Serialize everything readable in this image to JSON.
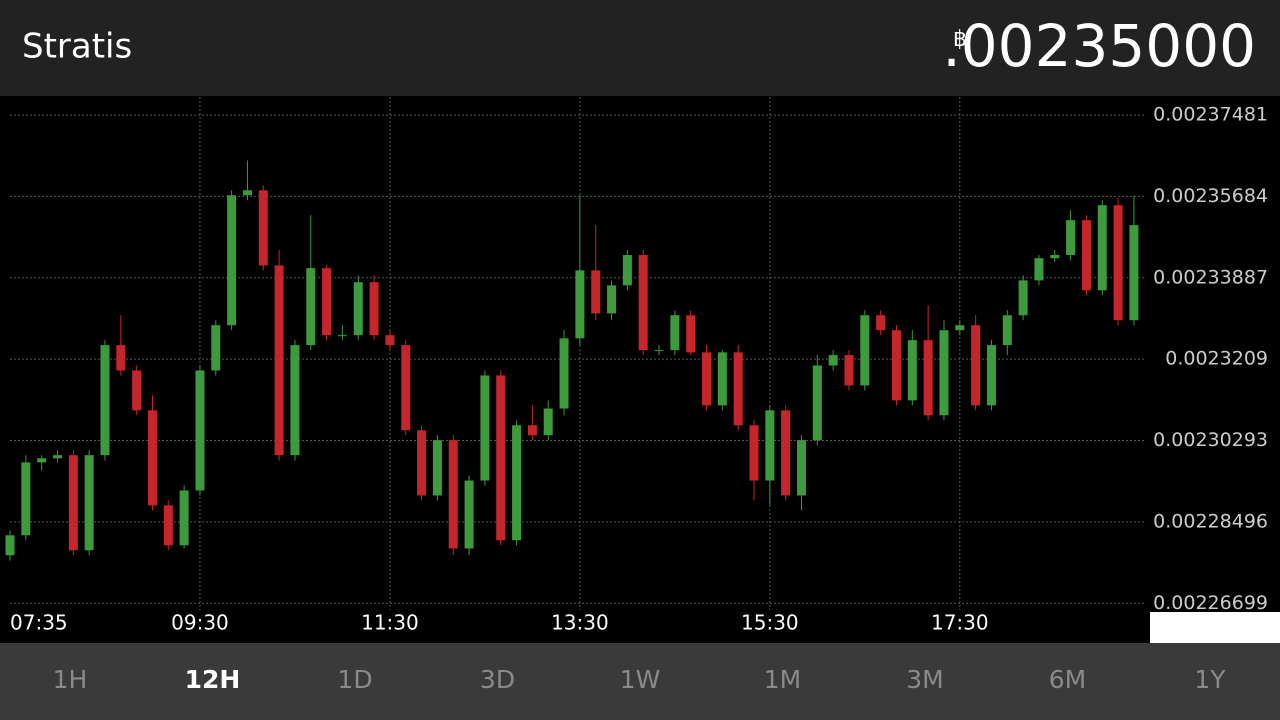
{
  "header": {
    "title": "Stratis",
    "currency": "฿",
    "price": ".00235000"
  },
  "chart_data": {
    "type": "candlestick",
    "categories": [
      "07:35",
      null,
      null,
      null,
      null,
      null,
      null,
      null,
      null,
      null,
      null,
      null,
      "09:30",
      null,
      null,
      null,
      null,
      null,
      null,
      null,
      null,
      null,
      null,
      null,
      "11:30",
      null,
      null,
      null,
      null,
      null,
      null,
      null,
      null,
      null,
      null,
      null,
      "13:30",
      null,
      null,
      null,
      null,
      null,
      null,
      null,
      null,
      null,
      null,
      null,
      "15:30",
      null,
      null,
      null,
      null,
      null,
      null,
      null,
      null,
      null,
      null,
      null,
      "17:30",
      null,
      null,
      null,
      null,
      null,
      null,
      null,
      null,
      null,
      null,
      null
    ],
    "open": [
      0.0022776,
      0.002282,
      0.0022981,
      0.002299,
      0.0022997,
      0.0022787,
      0.0022997,
      0.002324,
      0.0023184,
      0.0023096,
      0.0022886,
      0.0022798,
      0.0022919,
      0.0023184,
      0.0023284,
      0.0023571,
      0.0023582,
      0.0023416,
      0.0022997,
      0.002324,
      0.002341,
      0.0023262,
      0.0023262,
      0.0023379,
      0.0023262,
      0.002324,
      0.0023052,
      0.0022908,
      0.002303,
      0.0022791,
      0.0022941,
      0.0023173,
      0.0022809,
      0.0023063,
      0.0023041,
      0.00231,
      0.0023255,
      0.0023405,
      0.002331,
      0.0023372,
      0.0023439,
      0.0023229,
      0.0023229,
      0.0023306,
      0.0023224,
      0.0023107,
      0.0023224,
      0.0023063,
      0.0022941,
      0.0023096,
      0.0022908,
      0.002303,
      0.0023195,
      0.0023218,
      0.0023151,
      0.0023306,
      0.0023273,
      0.0023118,
      0.0023251,
      0.0023085,
      0.0023273,
      0.0023284,
      0.0023107,
      0.002324,
      0.0023306,
      0.0023383,
      0.0023432,
      0.0023439,
      0.0023516,
      0.0023361,
      0.0023549,
      0.0023295
    ],
    "high": [
      0.0022831,
      0.0022997,
      0.0022997,
      0.0023008,
      0.0023008,
      0.0023008,
      0.0023251,
      0.0023306,
      0.0023195,
      0.0023129,
      0.0022897,
      0.002293,
      0.0023195,
      0.0023295,
      0.0023582,
      0.0023648,
      0.0023593,
      0.002345,
      0.0023251,
      0.0023527,
      0.0023416,
      0.0023284,
      0.0023394,
      0.0023394,
      0.0023273,
      0.0023251,
      0.0023063,
      0.0023041,
      0.0023041,
      0.0022952,
      0.0023184,
      0.0023184,
      0.0023074,
      0.0023107,
      0.0023118,
      0.0023273,
      0.0023571,
      0.0023505,
      0.0023383,
      0.002345,
      0.002345,
      0.002324,
      0.0023317,
      0.0023317,
      0.002324,
      0.0023229,
      0.002324,
      0.0023074,
      0.0023107,
      0.0023107,
      0.0023041,
      0.0023218,
      0.0023229,
      0.0023229,
      0.0023317,
      0.0023317,
      0.0023284,
      0.0023273,
      0.0023328,
      0.0023295,
      0.0023295,
      0.0023306,
      0.0023251,
      0.0023317,
      0.0023394,
      0.0023439,
      0.002345,
      0.0023538,
      0.0023527,
      0.002356,
      0.0023564,
      0.0023571
    ],
    "low": [
      0.0022764,
      0.0022809,
      0.0022963,
      0.0022981,
      0.0022776,
      0.0022776,
      0.0022985,
      0.0023173,
      0.0023085,
      0.0022875,
      0.0022787,
      0.0022791,
      0.0022908,
      0.0023173,
      0.0023273,
      0.002356,
      0.0023405,
      0.0022985,
      0.0022985,
      0.0023229,
      0.0023251,
      0.0023251,
      0.0023251,
      0.0023251,
      0.0023229,
      0.0023041,
      0.0022897,
      0.0022897,
      0.0022776,
      0.0022776,
      0.002293,
      0.0022798,
      0.0022798,
      0.002303,
      0.002303,
      0.0023085,
      0.002324,
      0.0023295,
      0.0023295,
      0.0023361,
      0.0023218,
      0.0023218,
      0.0023218,
      0.0023218,
      0.0023096,
      0.0023096,
      0.0023052,
      0.0022897,
      0.0022886,
      0.0022897,
      0.0022875,
      0.0023019,
      0.0023184,
      0.002314,
      0.002314,
      0.0023262,
      0.0023107,
      0.0023107,
      0.0023074,
      0.0023074,
      0.0023262,
      0.0023096,
      0.0023096,
      0.0023218,
      0.0023295,
      0.0023372,
      0.0023423,
      0.0023427,
      0.002335,
      0.002335,
      0.0023284,
      0.0023284
    ],
    "close": [
      0.002282,
      0.0022981,
      0.002299,
      0.0022997,
      0.0022787,
      0.0022997,
      0.002324,
      0.0023184,
      0.0023096,
      0.0022886,
      0.0022798,
      0.0022919,
      0.0023184,
      0.0023284,
      0.0023571,
      0.0023582,
      0.0023416,
      0.0022997,
      0.002324,
      0.002341,
      0.0023262,
      0.0023262,
      0.0023379,
      0.0023262,
      0.002324,
      0.0023052,
      0.0022908,
      0.002303,
      0.0022791,
      0.0022941,
      0.0023173,
      0.0022809,
      0.0023063,
      0.0023041,
      0.00231,
      0.0023255,
      0.0023405,
      0.002331,
      0.0023372,
      0.0023439,
      0.0023229,
      0.0023229,
      0.0023306,
      0.0023224,
      0.0023107,
      0.0023224,
      0.0023063,
      0.0022941,
      0.0023096,
      0.0022908,
      0.002303,
      0.0023195,
      0.0023218,
      0.0023151,
      0.0023306,
      0.0023273,
      0.0023118,
      0.0023251,
      0.0023085,
      0.0023273,
      0.0023284,
      0.0023107,
      0.002324,
      0.0023306,
      0.0023383,
      0.0023432,
      0.0023439,
      0.0023516,
      0.0023361,
      0.0023549,
      0.0023295,
      0.0023505
    ],
    "up_color": "#3d9a3d",
    "down_color": "#c4262b",
    "ylim": [
      0.0022655,
      0.0023788
    ],
    "yticks": [
      0.00237481,
      0.00235684,
      0.00233887,
      0.0023209,
      0.00230293,
      0.00228496,
      0.00226699
    ],
    "grid": true
  },
  "tabs": [
    {
      "label": "1H"
    },
    {
      "label": "12H",
      "selected": true
    },
    {
      "label": "1D"
    },
    {
      "label": "3D"
    },
    {
      "label": "1W"
    },
    {
      "label": "1M"
    },
    {
      "label": "3M"
    },
    {
      "label": "6M"
    },
    {
      "label": "1Y"
    }
  ]
}
